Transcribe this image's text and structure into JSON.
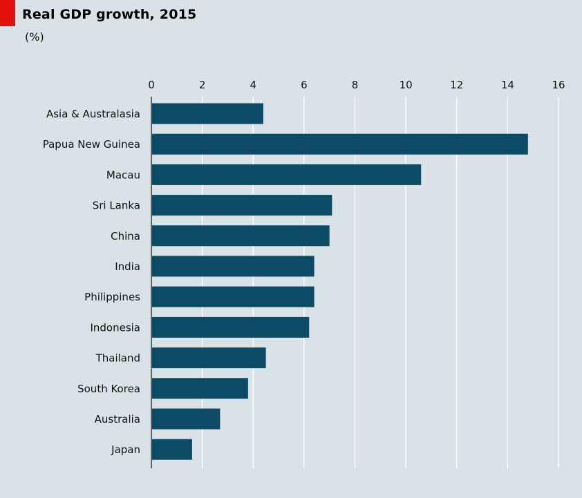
{
  "header": {
    "title": "Real GDP growth, 2015",
    "subtitle": "(%)"
  },
  "colors": {
    "background": "#d9e2e7",
    "bar": "#0d4a66",
    "accent": "#e3120b",
    "gridline": "#ffffff"
  },
  "chart_data": {
    "type": "bar",
    "orientation": "horizontal",
    "title": "Real GDP growth, 2015",
    "subtitle": "(%)",
    "xlabel": "",
    "ylabel": "",
    "xlim": [
      0,
      16
    ],
    "x_ticks": [
      0,
      2,
      4,
      6,
      8,
      10,
      12,
      14,
      16
    ],
    "tick_position": "top",
    "grid": true,
    "categories": [
      "Asia & Australasia",
      "Papua New Guinea",
      "Macau",
      "Sri Lanka",
      "China",
      "India",
      "Philippines",
      "Indonesia",
      "Thailand",
      "South Korea",
      "Australia",
      "Japan"
    ],
    "values": [
      4.4,
      14.8,
      10.6,
      7.1,
      7.0,
      6.4,
      6.4,
      6.2,
      4.5,
      3.8,
      2.7,
      1.6
    ]
  }
}
